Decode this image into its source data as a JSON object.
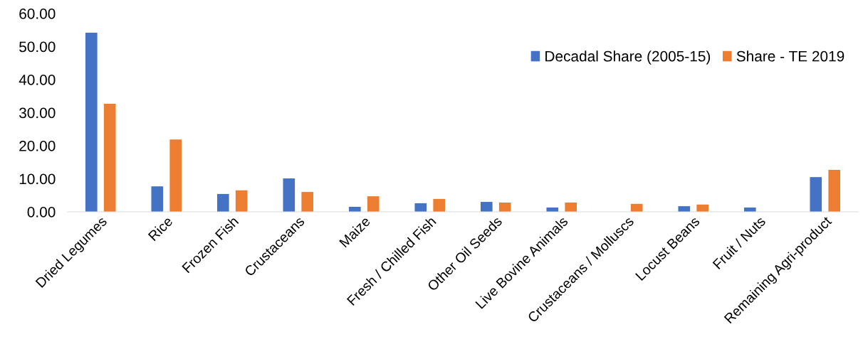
{
  "chart_data": {
    "type": "bar",
    "categories": [
      "Dried Legumes",
      "Rice",
      "Frozen Fish",
      "Crustaceans",
      "Maize",
      "Fresh / Chilled Fish",
      "Other Oil Seeds",
      "Live Bovine Animals",
      "Crustaceans / Molluscs",
      "Locust Beans",
      "Fruit / Nuts",
      "Remaining Agri-product"
    ],
    "series": [
      {
        "name": "Decadal Share (2005-15)",
        "color": "#4472c4",
        "values": [
          54.2,
          7.7,
          5.4,
          10.1,
          1.5,
          2.6,
          3.0,
          1.3,
          0,
          1.7,
          1.3,
          10.5
        ]
      },
      {
        "name": "Share - TE 2019",
        "color": "#ed7d31",
        "values": [
          32.7,
          21.9,
          6.5,
          6.0,
          4.7,
          3.9,
          2.8,
          2.8,
          2.4,
          2.2,
          0,
          12.7
        ]
      }
    ],
    "ylim": [
      0,
      60
    ],
    "yticks": [
      {
        "value": 0,
        "label": "0.00"
      },
      {
        "value": 10,
        "label": "10.00"
      },
      {
        "value": 20,
        "label": "20.00"
      },
      {
        "value": 30,
        "label": "30.00"
      },
      {
        "value": 40,
        "label": "40.00"
      },
      {
        "value": 50,
        "label": "50.00"
      },
      {
        "value": 60,
        "label": "60.00"
      }
    ],
    "grid": false,
    "legend": "top right"
  }
}
